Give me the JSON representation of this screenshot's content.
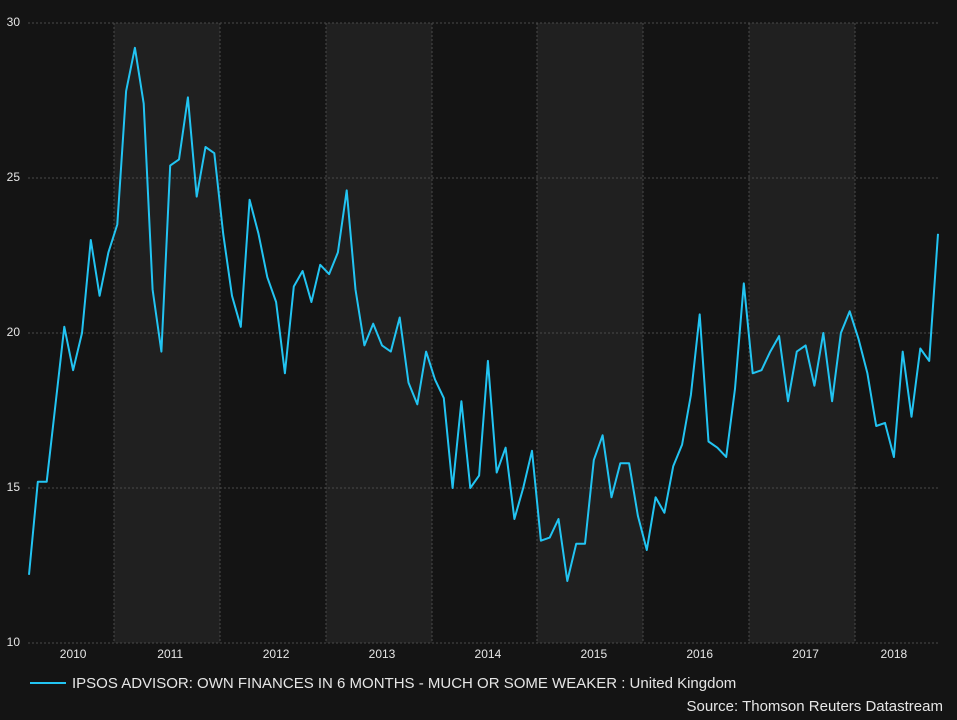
{
  "chart_data": {
    "type": "line",
    "legend_label": "IPSOS ADVISOR: OWN FINANCES IN 6 MONTHS - MUCH OR SOME WEAKER : United Kingdom",
    "source": "Source: Thomson Reuters Datastream",
    "categories": [
      null,
      null,
      null,
      null,
      null,
      "2010",
      null,
      null,
      null,
      null,
      null,
      null,
      null,
      null,
      null,
      null,
      "2011",
      null,
      null,
      null,
      null,
      null,
      null,
      null,
      null,
      null,
      null,
      null,
      "2012",
      null,
      null,
      null,
      null,
      null,
      null,
      null,
      null,
      null,
      null,
      null,
      "2013",
      null,
      null,
      null,
      null,
      null,
      null,
      null,
      null,
      null,
      null,
      null,
      "2014",
      null,
      null,
      null,
      null,
      null,
      null,
      null,
      null,
      null,
      null,
      null,
      "2015",
      null,
      null,
      null,
      null,
      null,
      null,
      null,
      null,
      null,
      null,
      null,
      "2016",
      null,
      null,
      null,
      null,
      null,
      null,
      null,
      null,
      null,
      null,
      null,
      "2017",
      null,
      null,
      null,
      null,
      null,
      null,
      null,
      null,
      null,
      "2018",
      null,
      null,
      null,
      null,
      null
    ],
    "series": [
      {
        "name": "IPSOS ADVISOR: OWN FINANCES IN 6 MONTHS - MUCH OR SOME WEAKER : United Kingdom",
        "color": "#22c4f2",
        "values": [
          12.2,
          15.2,
          15.2,
          17.7,
          20.2,
          18.8,
          20.0,
          23.0,
          21.2,
          22.6,
          23.5,
          27.8,
          29.2,
          27.4,
          21.4,
          19.4,
          25.4,
          25.6,
          27.6,
          24.4,
          26.0,
          25.8,
          23.2,
          21.2,
          20.2,
          24.3,
          23.2,
          21.8,
          21.0,
          18.7,
          21.5,
          22.0,
          21.0,
          22.2,
          21.9,
          22.6,
          24.6,
          21.4,
          19.6,
          20.3,
          19.6,
          19.4,
          20.5,
          18.4,
          17.7,
          19.4,
          18.5,
          17.9,
          15.0,
          17.8,
          15.0,
          15.4,
          19.1,
          15.5,
          16.3,
          14.0,
          15.0,
          16.2,
          13.3,
          13.4,
          14.0,
          12.0,
          13.2,
          13.2,
          15.9,
          16.7,
          14.7,
          15.8,
          15.8,
          14.1,
          13.0,
          14.7,
          14.2,
          15.7,
          16.4,
          18.0,
          20.6,
          16.5,
          16.3,
          16.0,
          18.2,
          21.6,
          18.7,
          18.8,
          19.4,
          19.9,
          17.8,
          19.4,
          19.6,
          18.3,
          20.0,
          17.8,
          20.0,
          20.7,
          19.8,
          18.7,
          17.0,
          17.1,
          16.0,
          19.4,
          17.3,
          19.5,
          19.1,
          23.2
        ]
      }
    ],
    "ylim": [
      10,
      30
    ],
    "yticks": [
      10,
      15,
      20,
      25,
      30
    ],
    "grid": true
  }
}
